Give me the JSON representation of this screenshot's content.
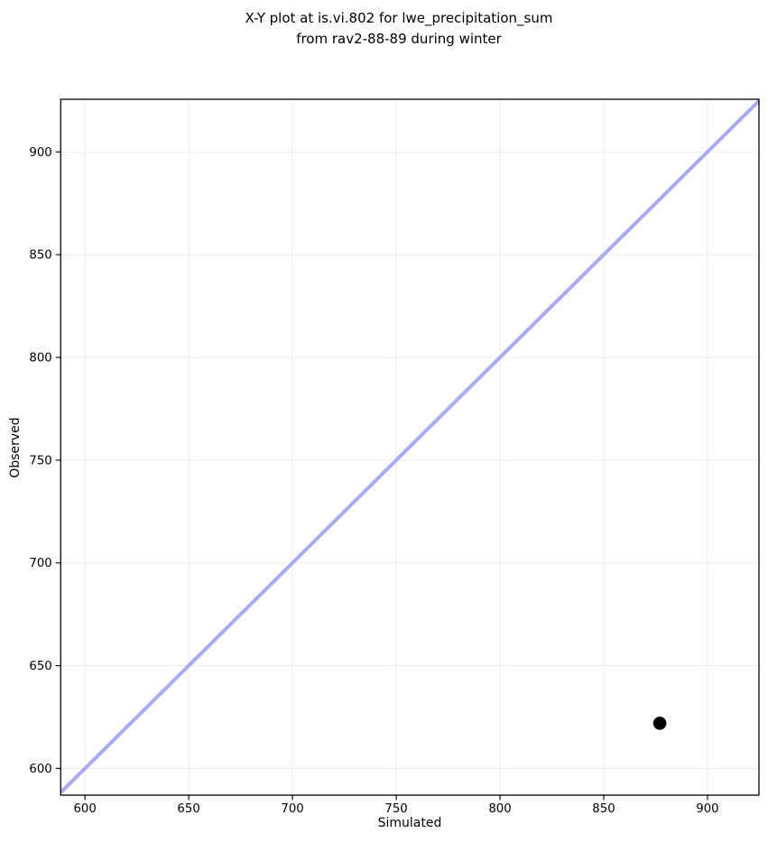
{
  "figure": {
    "title_line1": "X-Y plot at is.vi.802 for lwe_precipitation_sum",
    "title_line2": "from rav2-88-89 during winter"
  },
  "chart_data": {
    "type": "scatter",
    "title": "X-Y plot at is.vi.802 for lwe_precipitation_sum\nfrom rav2-88-89 during winter",
    "xlabel": "Simulated",
    "ylabel": "Observed",
    "xlim": [
      588.3,
      924.8
    ],
    "ylim": [
      587.0,
      925.6
    ],
    "xticks": [
      600,
      650,
      700,
      750,
      800,
      850,
      900
    ],
    "yticks": [
      600,
      650,
      700,
      750,
      800,
      850,
      900
    ],
    "grid": true,
    "legend": "none",
    "points": [
      {
        "x": 877,
        "y": 622
      }
    ],
    "identity_line": {
      "equation": "y=x",
      "color": "#a9abf0",
      "width": 4
    },
    "marker": {
      "color": "#000000",
      "radius": 7.3
    },
    "colors": {
      "grid": "#ececec",
      "spine": "#000000",
      "background": "#ffffff",
      "text": "#000000"
    }
  }
}
